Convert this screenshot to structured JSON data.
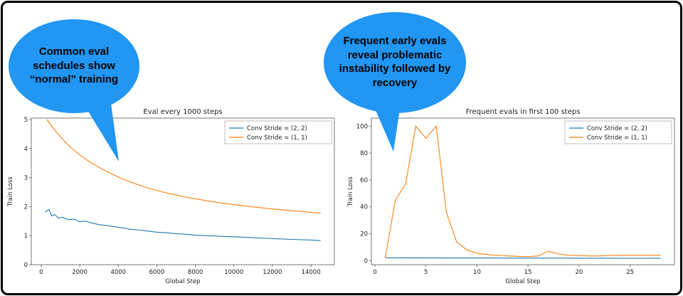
{
  "callouts": {
    "left": {
      "text": "Common eval schedules show “normal” training",
      "color": "#2196f3"
    },
    "right": {
      "text": "Frequent early evals reveal problematic instability followed by recovery",
      "color": "#2196f3"
    }
  },
  "chart_data": [
    {
      "type": "line",
      "title": "Eval every 1000 steps",
      "xlabel": "Global Step",
      "ylabel": "Train Loss",
      "xlim": [
        -515,
        15215
      ],
      "ylim": [
        0,
        5.05
      ],
      "xticks": [
        0,
        2000,
        4000,
        6000,
        8000,
        10000,
        12000,
        14000
      ],
      "yticks": [
        0,
        1,
        2,
        3,
        4,
        5
      ],
      "legend_position": "upper right",
      "grid": false,
      "series": [
        {
          "name": "Conv Stride = (2, 2)",
          "color": "#1f77b4",
          "x": [
            200,
            400,
            550,
            700,
            900,
            1100,
            1400,
            1700,
            2000,
            2300,
            2600,
            3000,
            3400,
            3800,
            4200,
            4600,
            5000,
            5500,
            6000,
            6500,
            7000,
            7500,
            8000,
            8500,
            9000,
            9500,
            10000,
            11000,
            12000,
            13000,
            14000,
            14500
          ],
          "y": [
            1.82,
            1.9,
            1.68,
            1.73,
            1.6,
            1.63,
            1.55,
            1.57,
            1.48,
            1.5,
            1.44,
            1.38,
            1.35,
            1.31,
            1.27,
            1.22,
            1.2,
            1.16,
            1.12,
            1.1,
            1.07,
            1.05,
            1.02,
            1.0,
            0.99,
            0.97,
            0.96,
            0.93,
            0.9,
            0.87,
            0.85,
            0.83
          ]
        },
        {
          "name": "Conv Stride = (1, 1)",
          "color": "#ff7f0e",
          "x": [
            300,
            600,
            900,
            1200,
            1500,
            2000,
            2500,
            3000,
            3500,
            4000,
            4500,
            5000,
            5500,
            6000,
            6500,
            7000,
            7500,
            8000,
            9000,
            10000,
            11000,
            12000,
            13000,
            14000,
            14500
          ],
          "y": [
            5.0,
            4.72,
            4.48,
            4.26,
            4.06,
            3.78,
            3.55,
            3.35,
            3.18,
            3.02,
            2.88,
            2.76,
            2.65,
            2.56,
            2.47,
            2.4,
            2.33,
            2.27,
            2.16,
            2.07,
            1.99,
            1.92,
            1.86,
            1.8,
            1.78
          ]
        }
      ]
    },
    {
      "type": "line",
      "title": "Frequent evals in first 100 steps",
      "xlabel": "Global Step",
      "ylabel": "Train Loss",
      "xlim": [
        -0.35,
        29.35
      ],
      "ylim": [
        -3,
        106
      ],
      "xticks": [
        0,
        5,
        10,
        15,
        20,
        25
      ],
      "yticks": [
        0,
        20,
        40,
        60,
        80,
        100
      ],
      "legend_position": "upper right",
      "grid": false,
      "series": [
        {
          "name": "Conv Stride = (2, 2)",
          "color": "#1f77b4",
          "x": [
            1,
            3,
            5,
            7,
            9,
            11,
            13,
            15,
            17,
            19,
            21,
            23,
            25,
            27,
            28
          ],
          "y": [
            2.2,
            2.1,
            2.1,
            2.0,
            2.0,
            2.0,
            1.9,
            1.9,
            1.9,
            1.9,
            1.8,
            1.8,
            1.8,
            1.8,
            1.8
          ]
        },
        {
          "name": "Conv Stride = (1, 1)",
          "color": "#ff7f0e",
          "x": [
            1,
            2,
            3,
            4,
            5,
            6,
            7,
            8,
            9,
            10,
            11,
            12,
            13,
            14,
            15,
            16,
            17,
            18,
            19,
            20,
            21,
            22,
            23,
            24,
            25,
            26,
            27,
            28
          ],
          "y": [
            2,
            45,
            57,
            100,
            91,
            100,
            36,
            14,
            8,
            5.5,
            4.5,
            4,
            3.5,
            3.2,
            3,
            3.5,
            7,
            5,
            4,
            3.8,
            3.5,
            3.5,
            3.8,
            4,
            4,
            4,
            4,
            4.2
          ]
        }
      ]
    }
  ]
}
